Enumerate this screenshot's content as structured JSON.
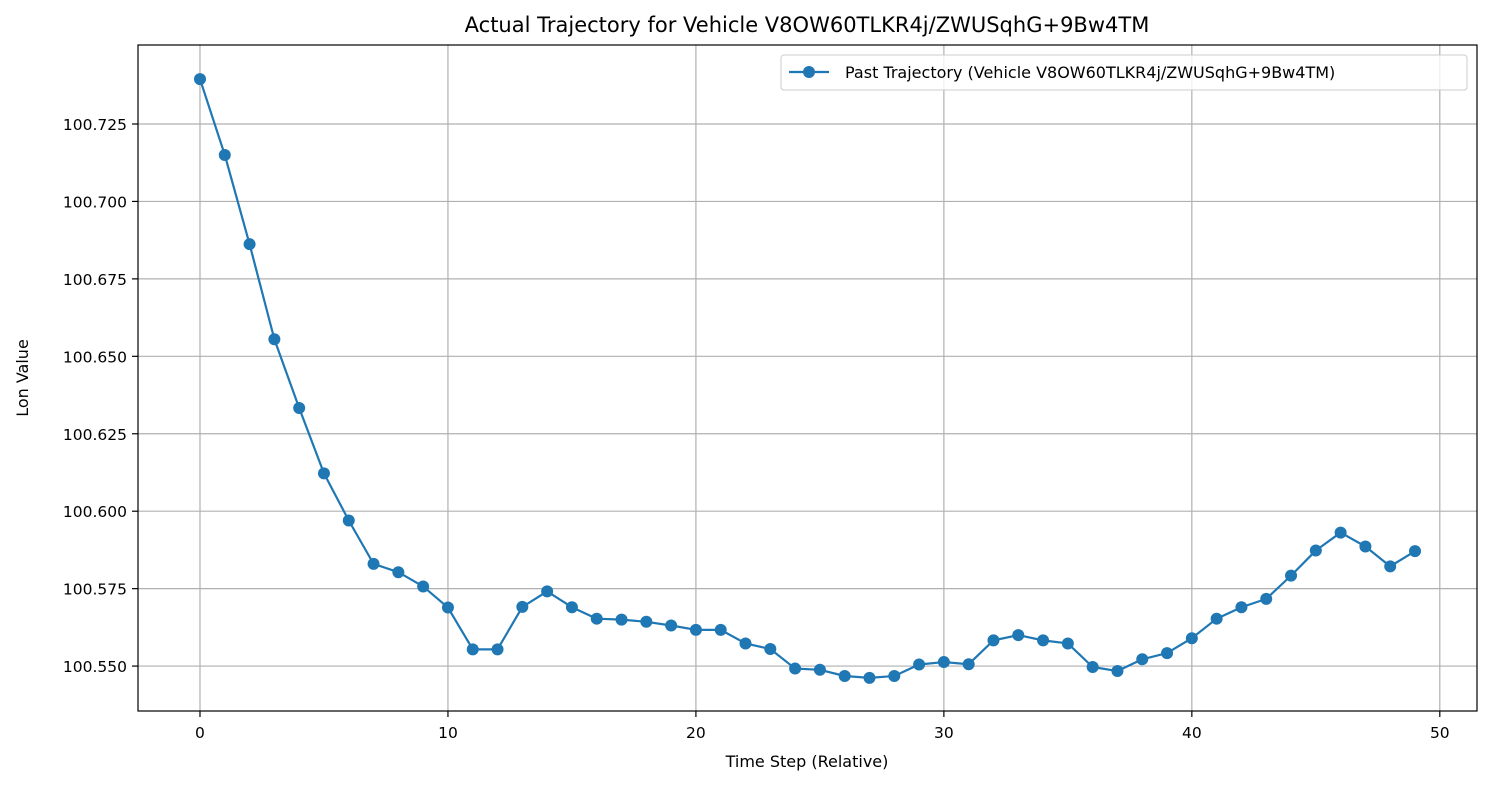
{
  "chart_data": {
    "type": "line",
    "title": "Actual Trajectory for Vehicle V8OW60TLKR4j/ZWUSqhG+9Bw4TM",
    "xlabel": "Time Step (Relative)",
    "ylabel": "Lon Value",
    "xlim": [
      -2.5,
      51.5
    ],
    "ylim": [
      100.5355,
      100.7505
    ],
    "xticks": [
      0,
      10,
      20,
      30,
      40,
      50
    ],
    "xtick_labels": [
      "0",
      "10",
      "20",
      "30",
      "40",
      "50"
    ],
    "yticks": [
      100.55,
      100.575,
      100.6,
      100.625,
      100.65,
      100.675,
      100.7,
      100.725
    ],
    "ytick_labels": [
      "100.550",
      "100.575",
      "100.600",
      "100.625",
      "100.650",
      "100.675",
      "100.700",
      "100.725"
    ],
    "grid": true,
    "legend_position": "top-right",
    "series": [
      {
        "name": "Past Trajectory (Vehicle V8OW60TLKR4j/ZWUSqhG+9Bw4TM)",
        "color": "#1f77b4",
        "marker": "circle",
        "x": [
          0,
          1,
          2,
          3,
          4,
          5,
          6,
          7,
          8,
          9,
          10,
          11,
          12,
          13,
          14,
          15,
          16,
          17,
          18,
          19,
          20,
          21,
          22,
          23,
          24,
          25,
          26,
          27,
          28,
          29,
          30,
          31,
          32,
          33,
          34,
          35,
          36,
          37,
          38,
          39,
          40,
          41,
          42,
          43,
          44,
          45,
          46,
          47,
          48,
          49
        ],
        "values": [
          100.7395,
          100.715,
          100.6862,
          100.6555,
          100.6333,
          100.6122,
          100.597,
          100.583,
          100.5803,
          100.5757,
          100.5689,
          100.5554,
          100.5554,
          100.5691,
          100.5741,
          100.569,
          100.5653,
          100.565,
          100.5643,
          100.5631,
          100.5617,
          100.5617,
          100.5573,
          100.5555,
          100.5492,
          100.5488,
          100.5468,
          100.5462,
          100.5468,
          100.5505,
          100.5513,
          100.5506,
          100.5583,
          100.56,
          100.5583,
          100.5573,
          100.5497,
          100.5484,
          100.5522,
          100.5542,
          100.559,
          100.5653,
          100.569,
          100.5717,
          100.5792,
          100.5873,
          100.5931,
          100.5886,
          100.5822,
          100.5871
        ]
      }
    ]
  }
}
